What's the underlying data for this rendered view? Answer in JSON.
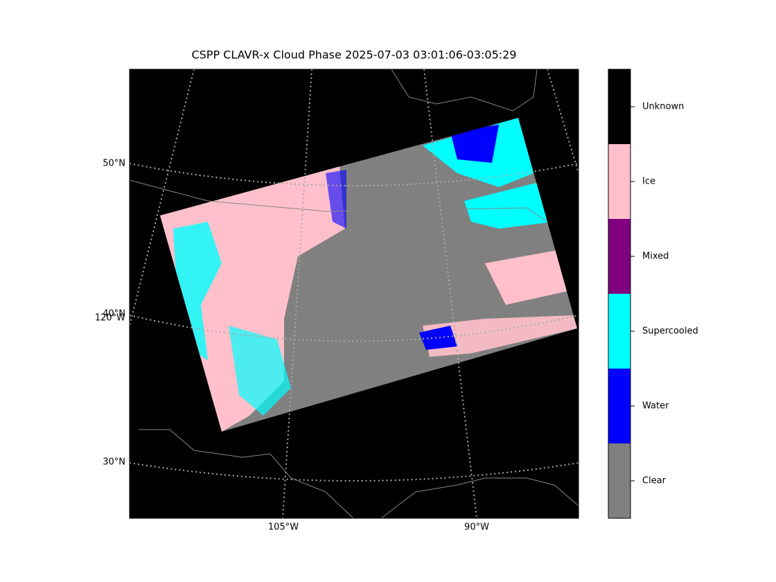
{
  "title": "CSPP CLAVR-x Cloud Phase 2025-07-03 03:01:06-03:05:29",
  "gridline_labels": {
    "lat": [
      "50°N",
      "40°N",
      "30°N"
    ],
    "lon": [
      "120°W",
      "105°W",
      "90°W"
    ]
  },
  "colorbar": {
    "classes": [
      {
        "label": "Clear",
        "color": "#808080"
      },
      {
        "label": "Water",
        "color": "#0000ff"
      },
      {
        "label": "Supercooled",
        "color": "#00ffff"
      },
      {
        "label": "Mixed",
        "color": "#800080"
      },
      {
        "label": "Ice",
        "color": "#ffc0cb"
      },
      {
        "label": "Unknown",
        "color": "#000000"
      }
    ]
  }
}
